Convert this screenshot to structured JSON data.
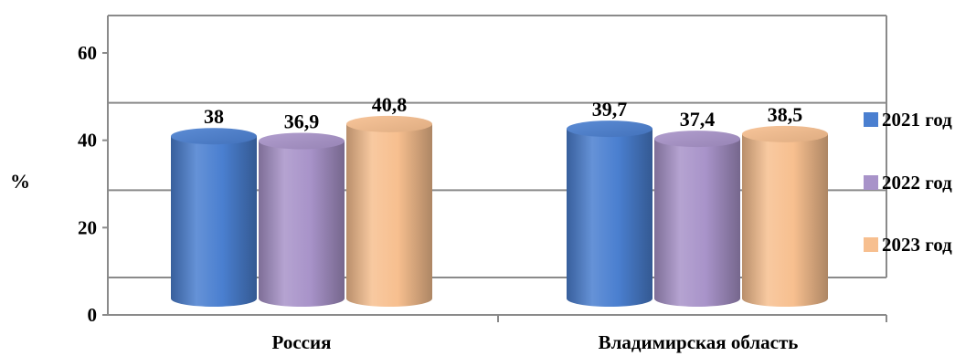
{
  "chart_data": {
    "type": "bar",
    "style": "3d-cylinder",
    "categories": [
      "Россия",
      "Владимирская область"
    ],
    "series": [
      {
        "name": "2021 год",
        "values": [
          38,
          39.7
        ],
        "value_labels": [
          "38",
          "39,7"
        ],
        "color": "#4a7fd0"
      },
      {
        "name": "2022 год",
        "values": [
          36.9,
          37.4
        ],
        "value_labels": [
          "36,9",
          "37,4"
        ],
        "color": "#a893c9"
      },
      {
        "name": "2023 год",
        "values": [
          40.8,
          38.5
        ],
        "value_labels": [
          "40,8",
          "38,5"
        ],
        "color": "#f7bf8f"
      }
    ],
    "ylabel": "%",
    "ylim": [
      0,
      60
    ],
    "yticks": [
      0,
      20,
      40,
      60
    ],
    "ytick_labels": [
      "0",
      "20",
      "40",
      "60"
    ],
    "grid": true,
    "legend_position": "right"
  }
}
